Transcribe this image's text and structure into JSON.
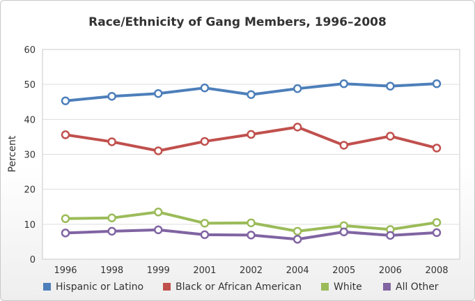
{
  "chart_data": {
    "type": "line",
    "title": "Race/Ethnicity of Gang Members, 1996–2008",
    "xlabel": "",
    "ylabel": "Percent",
    "categories": [
      "1996",
      "1998",
      "1999",
      "2001",
      "2002",
      "2004",
      "2005",
      "2006",
      "2008"
    ],
    "ylim": [
      0,
      60
    ],
    "yticks": [
      0,
      10,
      20,
      30,
      40,
      50,
      60
    ],
    "grid": true,
    "legend_position": "bottom",
    "series": [
      {
        "name": "Hispanic or Latino",
        "color": "#4d7fba",
        "values": [
          45.3,
          46.6,
          47.4,
          49.0,
          47.1,
          48.8,
          50.2,
          49.5,
          50.2
        ]
      },
      {
        "name": "Black or African American",
        "color": "#c0504d",
        "values": [
          35.6,
          33.6,
          31.0,
          33.7,
          35.7,
          37.8,
          32.6,
          35.2,
          31.8
        ]
      },
      {
        "name": "White",
        "color": "#9bbb59",
        "values": [
          11.6,
          11.8,
          13.5,
          10.3,
          10.4,
          8.0,
          9.6,
          8.5,
          10.5
        ]
      },
      {
        "name": "All Other",
        "color": "#8064a2",
        "values": [
          7.5,
          8.0,
          8.4,
          7.0,
          6.9,
          5.7,
          7.8,
          6.8,
          7.6
        ]
      }
    ]
  }
}
